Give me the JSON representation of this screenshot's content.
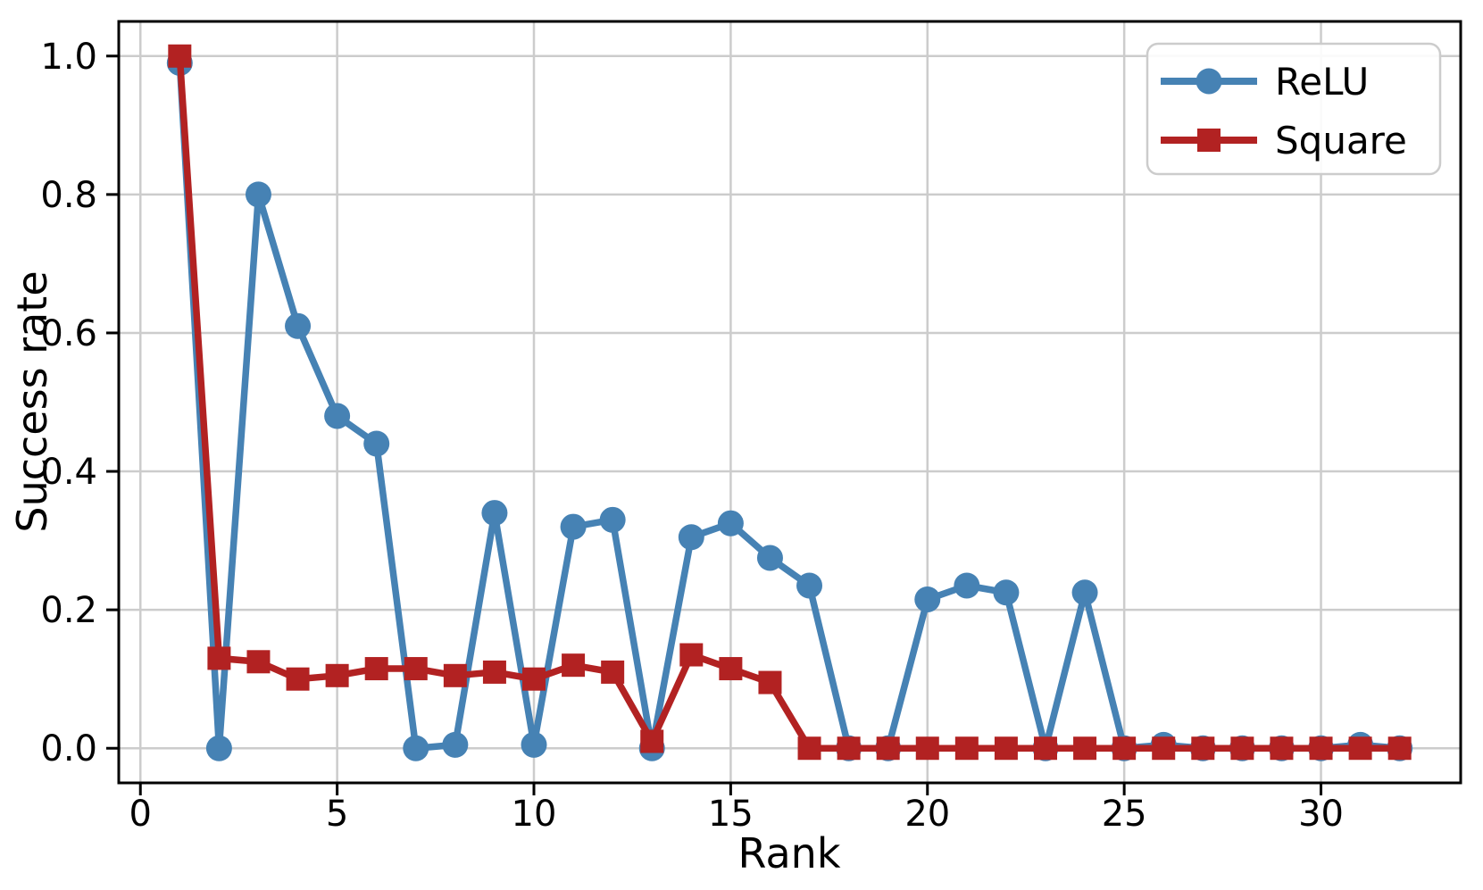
{
  "chart_data": {
    "type": "line",
    "title": "",
    "xlabel": "Rank",
    "ylabel": "Success rate",
    "x": [
      1,
      2,
      3,
      4,
      5,
      6,
      7,
      8,
      9,
      10,
      11,
      12,
      13,
      14,
      15,
      16,
      17,
      18,
      19,
      20,
      21,
      22,
      23,
      24,
      25,
      26,
      27,
      28,
      29,
      30,
      31,
      32
    ],
    "series": [
      {
        "name": "ReLU",
        "color": "#4682B4",
        "marker": "circle",
        "values": [
          0.99,
          0.0,
          0.8,
          0.61,
          0.48,
          0.44,
          0.0,
          0.005,
          0.34,
          0.005,
          0.32,
          0.33,
          0.0,
          0.305,
          0.325,
          0.275,
          0.235,
          0.0,
          0.0,
          0.215,
          0.235,
          0.225,
          0.0,
          0.225,
          0.0,
          0.005,
          0.0,
          0.0,
          0.0,
          0.0,
          0.005,
          0.0
        ]
      },
      {
        "name": "Square",
        "color": "#B22222",
        "marker": "square",
        "values": [
          1.0,
          0.13,
          0.125,
          0.1,
          0.105,
          0.115,
          0.115,
          0.105,
          0.11,
          0.1,
          0.12,
          0.11,
          0.01,
          0.135,
          0.115,
          0.095,
          0.0,
          0.0,
          0.0,
          0.0,
          0.0,
          0.0,
          0.0,
          0.0,
          0.0,
          0.0,
          0.0,
          0.0,
          0.0,
          0.0,
          0.0,
          0.0
        ]
      }
    ],
    "x_ticks": [
      0,
      5,
      10,
      15,
      20,
      25,
      30
    ],
    "x_tick_labels": [
      "0",
      "5",
      "10",
      "15",
      "20",
      "25",
      "30"
    ],
    "y_ticks": [
      0.0,
      0.2,
      0.4,
      0.6,
      0.8,
      1.0
    ],
    "y_tick_labels": [
      "0.0",
      "0.2",
      "0.4",
      "0.6",
      "0.8",
      "1.0"
    ],
    "xlim": [
      -0.55,
      33.55
    ],
    "ylim": [
      -0.05,
      1.05
    ],
    "grid": true,
    "grid_color": "#cccccc",
    "spine_color": "#000000",
    "background_color": "#ffffff",
    "legend": {
      "position": "upper right",
      "entries": [
        "ReLU",
        "Square"
      ]
    }
  }
}
